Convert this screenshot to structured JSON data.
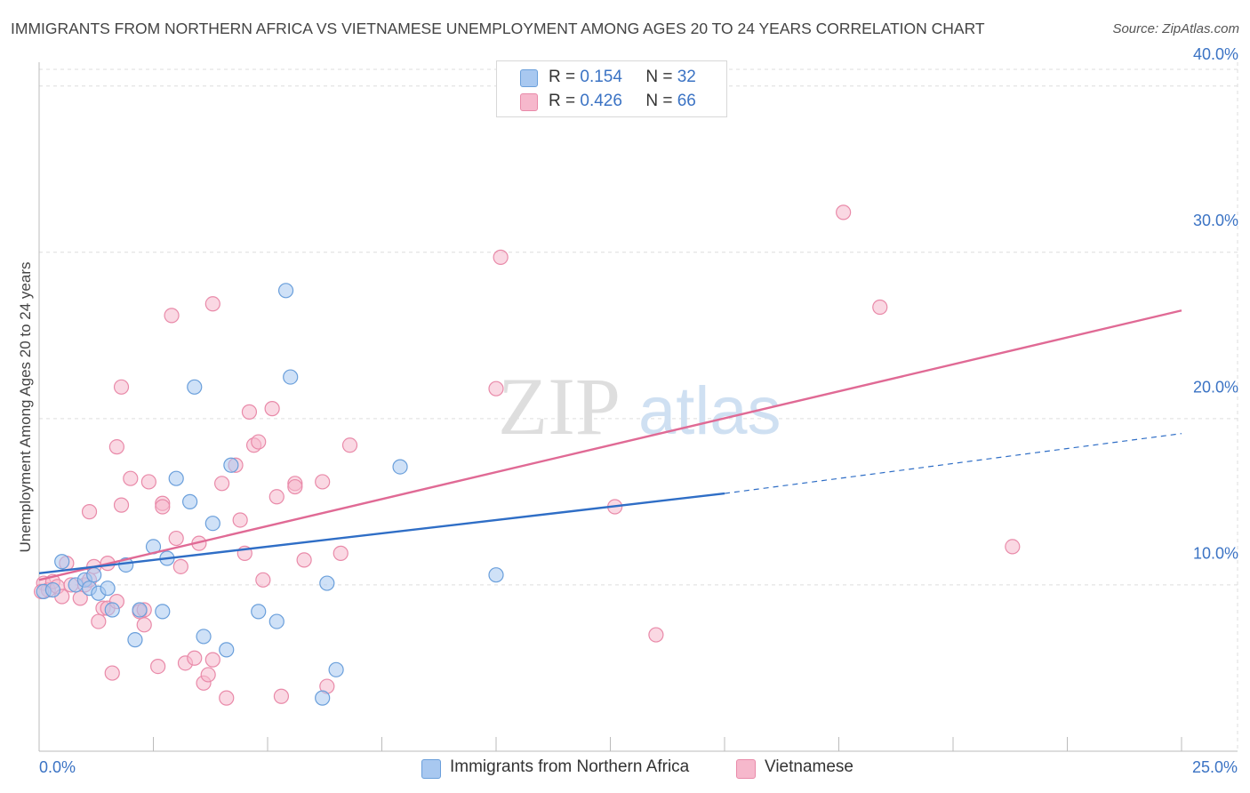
{
  "header": {
    "title": "IMMIGRANTS FROM NORTHERN AFRICA VS VIETNAMESE UNEMPLOYMENT AMONG AGES 20 TO 24 YEARS CORRELATION CHART",
    "source": "Source: ZipAtlas.com"
  },
  "watermark": {
    "zip": "ZIP",
    "atlas": "atlas"
  },
  "legend": {
    "rows": [
      {
        "r_label": "R = ",
        "r_value": "0.154",
        "n_label": "N = ",
        "n_value": "32"
      },
      {
        "r_label": "R = ",
        "r_value": "0.426",
        "n_label": "N = ",
        "n_value": "66"
      }
    ]
  },
  "bottom_legend": {
    "items": [
      {
        "label": "Immigrants from Northern Africa"
      },
      {
        "label": "Vietnamese"
      }
    ]
  },
  "colors": {
    "blue_fill": "#a8c8f0",
    "blue_stroke": "#6a9fdb",
    "blue_line": "#2f6ec6",
    "pink_fill": "#f6b8cc",
    "pink_stroke": "#e98aa9",
    "pink_line": "#e06a95",
    "tick_text": "#3b73c4",
    "grid": "#dddddd"
  },
  "chart_data": {
    "type": "scatter",
    "title": "IMMIGRANTS FROM NORTHERN AFRICA VS VIETNAMESE UNEMPLOYMENT AMONG AGES 20 TO 24 YEARS CORRELATION CHART",
    "xlabel": "",
    "ylabel": "Unemployment Among Ages 20 to 24 years",
    "xlim": [
      0,
      25
    ],
    "ylim": [
      0,
      41
    ],
    "x_tick_labels": [
      "0.0%",
      "25.0%"
    ],
    "y_ticks": [
      10,
      20,
      30,
      40
    ],
    "y_tick_labels": [
      "10.0%",
      "20.0%",
      "30.0%",
      "40.0%"
    ],
    "grid": true,
    "legend_position": "top-center",
    "series": [
      {
        "name": "Immigrants from Northern Africa",
        "r": 0.154,
        "n": 32,
        "trend": {
          "x0": 0,
          "y0": 10.7,
          "x1": 15,
          "y1": 15.5,
          "dashed_to_x": 25,
          "dashed_to_y": 19.1
        },
        "points": [
          [
            0.1,
            9.6
          ],
          [
            0.3,
            9.7
          ],
          [
            0.5,
            11.4
          ],
          [
            0.8,
            10.0
          ],
          [
            1.0,
            10.3
          ],
          [
            1.1,
            9.8
          ],
          [
            1.2,
            10.6
          ],
          [
            1.3,
            9.5
          ],
          [
            1.5,
            9.8
          ],
          [
            1.6,
            8.5
          ],
          [
            1.9,
            11.2
          ],
          [
            2.1,
            6.7
          ],
          [
            2.2,
            8.5
          ],
          [
            2.5,
            12.3
          ],
          [
            2.7,
            8.4
          ],
          [
            2.8,
            11.6
          ],
          [
            3.0,
            16.4
          ],
          [
            3.3,
            15.0
          ],
          [
            3.4,
            21.9
          ],
          [
            3.6,
            6.9
          ],
          [
            3.8,
            13.7
          ],
          [
            4.1,
            6.1
          ],
          [
            4.2,
            17.2
          ],
          [
            4.8,
            8.4
          ],
          [
            5.2,
            7.8
          ],
          [
            5.4,
            27.7
          ],
          [
            5.5,
            22.5
          ],
          [
            6.2,
            3.2
          ],
          [
            6.3,
            10.1
          ],
          [
            6.5,
            4.9
          ],
          [
            7.9,
            17.1
          ],
          [
            10.0,
            10.6
          ]
        ]
      },
      {
        "name": "Vietnamese",
        "r": 0.426,
        "n": 66,
        "trend": {
          "x0": 0,
          "y0": 10.3,
          "x1": 25,
          "y1": 26.5
        },
        "points": [
          [
            0.1,
            10.1
          ],
          [
            0.2,
            9.7
          ],
          [
            0.3,
            10.2
          ],
          [
            0.4,
            9.9
          ],
          [
            0.5,
            9.3
          ],
          [
            0.6,
            11.3
          ],
          [
            0.7,
            10.0
          ],
          [
            0.9,
            9.2
          ],
          [
            1.0,
            10.0
          ],
          [
            1.1,
            10.3
          ],
          [
            1.1,
            14.4
          ],
          [
            1.2,
            11.1
          ],
          [
            1.3,
            7.8
          ],
          [
            1.4,
            8.6
          ],
          [
            1.5,
            8.6
          ],
          [
            1.5,
            11.3
          ],
          [
            1.6,
            4.7
          ],
          [
            1.7,
            9.0
          ],
          [
            1.7,
            18.3
          ],
          [
            1.8,
            14.8
          ],
          [
            1.8,
            21.9
          ],
          [
            2.0,
            16.4
          ],
          [
            2.2,
            8.4
          ],
          [
            2.3,
            8.5
          ],
          [
            2.3,
            7.6
          ],
          [
            2.4,
            16.2
          ],
          [
            2.6,
            5.1
          ],
          [
            2.7,
            14.9
          ],
          [
            2.7,
            14.7
          ],
          [
            2.9,
            26.2
          ],
          [
            3.0,
            12.8
          ],
          [
            3.1,
            11.1
          ],
          [
            3.2,
            5.3
          ],
          [
            3.4,
            5.6
          ],
          [
            3.5,
            12.5
          ],
          [
            3.6,
            4.1
          ],
          [
            3.7,
            4.6
          ],
          [
            3.8,
            5.5
          ],
          [
            3.8,
            26.9
          ],
          [
            4.0,
            16.1
          ],
          [
            4.1,
            3.2
          ],
          [
            4.3,
            17.2
          ],
          [
            4.4,
            13.9
          ],
          [
            4.5,
            11.9
          ],
          [
            4.6,
            20.4
          ],
          [
            4.7,
            18.4
          ],
          [
            4.8,
            18.6
          ],
          [
            4.9,
            10.3
          ],
          [
            5.1,
            20.6
          ],
          [
            5.2,
            15.3
          ],
          [
            5.3,
            3.3
          ],
          [
            5.6,
            16.1
          ],
          [
            5.6,
            15.9
          ],
          [
            5.8,
            11.5
          ],
          [
            6.2,
            16.2
          ],
          [
            6.3,
            3.9
          ],
          [
            6.6,
            11.9
          ],
          [
            6.8,
            18.4
          ],
          [
            10.0,
            21.8
          ],
          [
            10.1,
            29.7
          ],
          [
            12.6,
            14.7
          ],
          [
            13.5,
            7.0
          ],
          [
            17.6,
            32.4
          ],
          [
            18.4,
            26.7
          ],
          [
            21.3,
            12.3
          ],
          [
            0.05,
            9.6
          ]
        ]
      }
    ]
  }
}
